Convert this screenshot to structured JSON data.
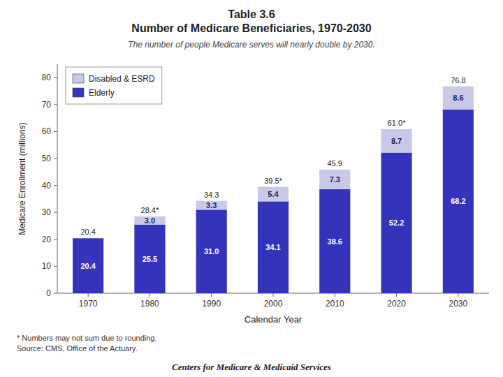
{
  "chart_data": {
    "type": "bar",
    "stacked": true,
    "title": [
      "Table 3.6",
      "Number of Medicare Beneficiaries, 1970-2030"
    ],
    "subtitle": "The number of people Medicare serves will nearly double by 2030.",
    "x_label": "Calendar Year",
    "y_label": "Medicare Enrollment (millions)",
    "categories": [
      "1970",
      "1980",
      "1990",
      "2000",
      "2010",
      "2020",
      "2030"
    ],
    "series": [
      {
        "name": "Elderly",
        "color": "#3333bb",
        "values": [
          20.4,
          25.5,
          31.0,
          34.1,
          38.6,
          52.2,
          68.2
        ],
        "value_labels": [
          "20.4",
          "25.5",
          "31.0",
          "34.1",
          "38.6",
          "52.2",
          "68.2"
        ]
      },
      {
        "name": "Disabled & ESRD",
        "color": "#c8c8e8",
        "values": [
          0.0,
          3.0,
          3.3,
          5.4,
          7.3,
          8.7,
          8.6
        ],
        "value_labels": [
          null,
          "3.0",
          "3.3",
          "5.4",
          "7.3",
          "8.7",
          "8.6"
        ]
      }
    ],
    "totals": [
      20.4,
      28.4,
      34.3,
      39.5,
      45.9,
      61.0,
      76.8
    ],
    "total_labels": [
      "20.4",
      "28.4*",
      "34.3",
      "39.5*",
      "45.9",
      "61.0*",
      "76.8"
    ],
    "data_labels": true,
    "ylim": [
      0,
      85
    ],
    "yticks": [
      0,
      10,
      20,
      30,
      40,
      50,
      60,
      70,
      80
    ],
    "grid": false,
    "legend": "upper-left",
    "annotations": [
      "* Numbers may not sum due to rounding.",
      "Source:  CMS, Office of the Actuary."
    ],
    "footer": "Centers for Medicare & Medicaid Services"
  }
}
